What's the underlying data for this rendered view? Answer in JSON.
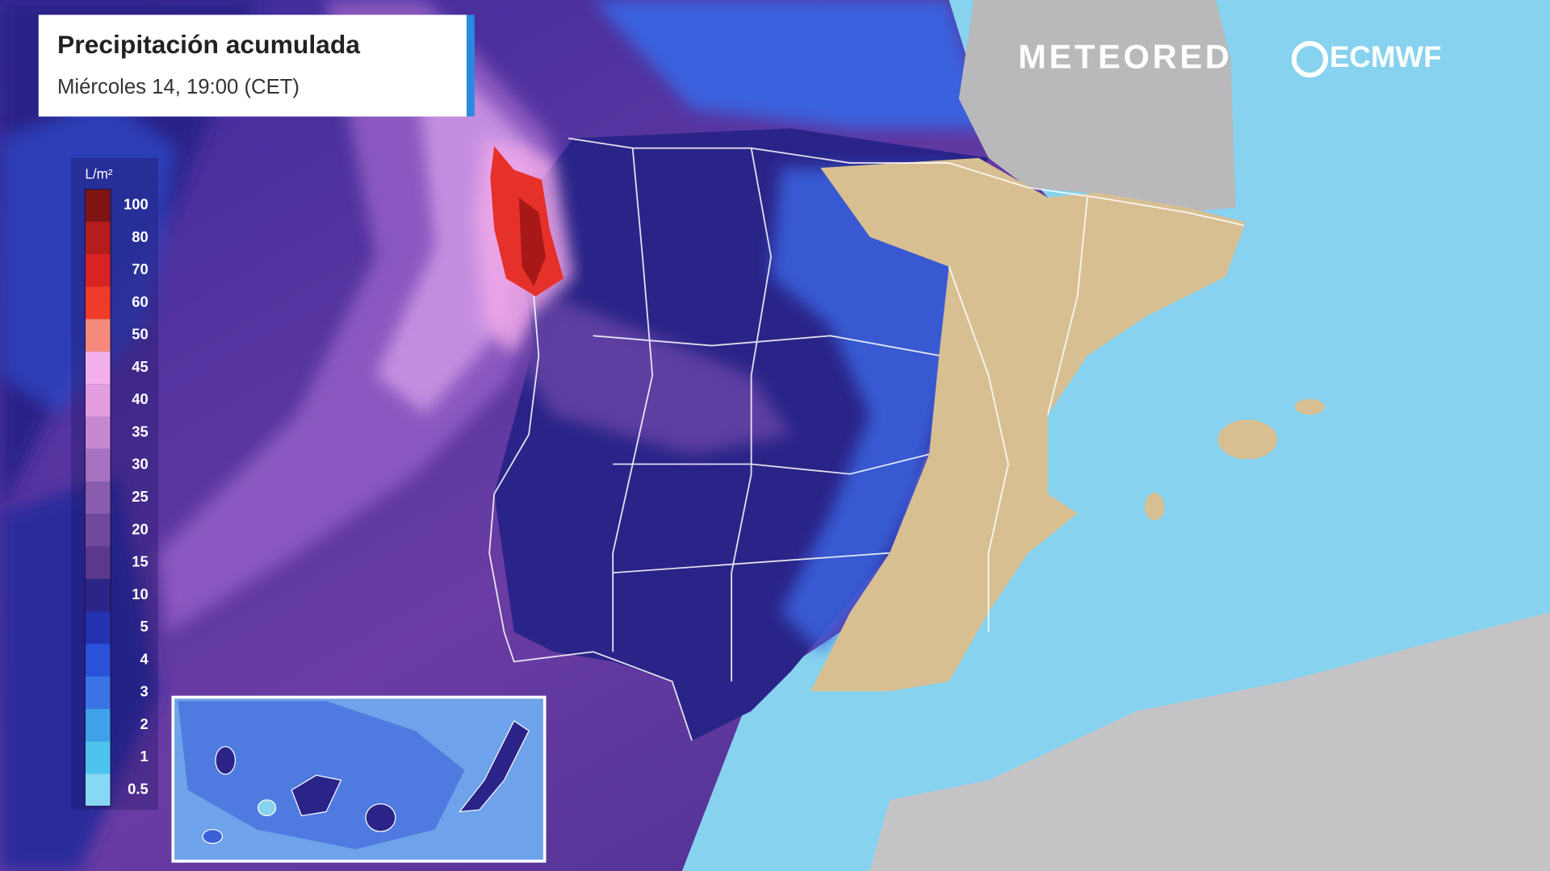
{
  "header": {
    "title": "Precipitación acumulada",
    "subtitle": "Miércoles 14, 19:00 (CET)"
  },
  "logos": {
    "brand": "METEORED",
    "model": "ECMWF"
  },
  "legend": {
    "unit": "L/m²",
    "items": [
      {
        "value": 100,
        "color": "#7e1414"
      },
      {
        "value": 80,
        "color": "#b51c1c"
      },
      {
        "value": 70,
        "color": "#d92222"
      },
      {
        "value": 60,
        "color": "#f03a2a"
      },
      {
        "value": 50,
        "color": "#f58a7a"
      },
      {
        "value": 45,
        "color": "#f4b0ec"
      },
      {
        "value": 40,
        "color": "#e29ee0"
      },
      {
        "value": 35,
        "color": "#c888d0"
      },
      {
        "value": 30,
        "color": "#a772c0"
      },
      {
        "value": 25,
        "color": "#8a5cae"
      },
      {
        "value": 20,
        "color": "#72489c"
      },
      {
        "value": 15,
        "color": "#5b388c"
      },
      {
        "value": 10,
        "color": "#2c2488"
      },
      {
        "value": 5,
        "color": "#2532b0"
      },
      {
        "value": 4,
        "color": "#2a52d8"
      },
      {
        "value": 3,
        "color": "#3a74e6"
      },
      {
        "value": 2,
        "color": "#40a0ea"
      },
      {
        "value": 1,
        "color": "#4cc4ee"
      },
      {
        "value": 0.5,
        "color": "#86d8f4"
      }
    ]
  }
}
